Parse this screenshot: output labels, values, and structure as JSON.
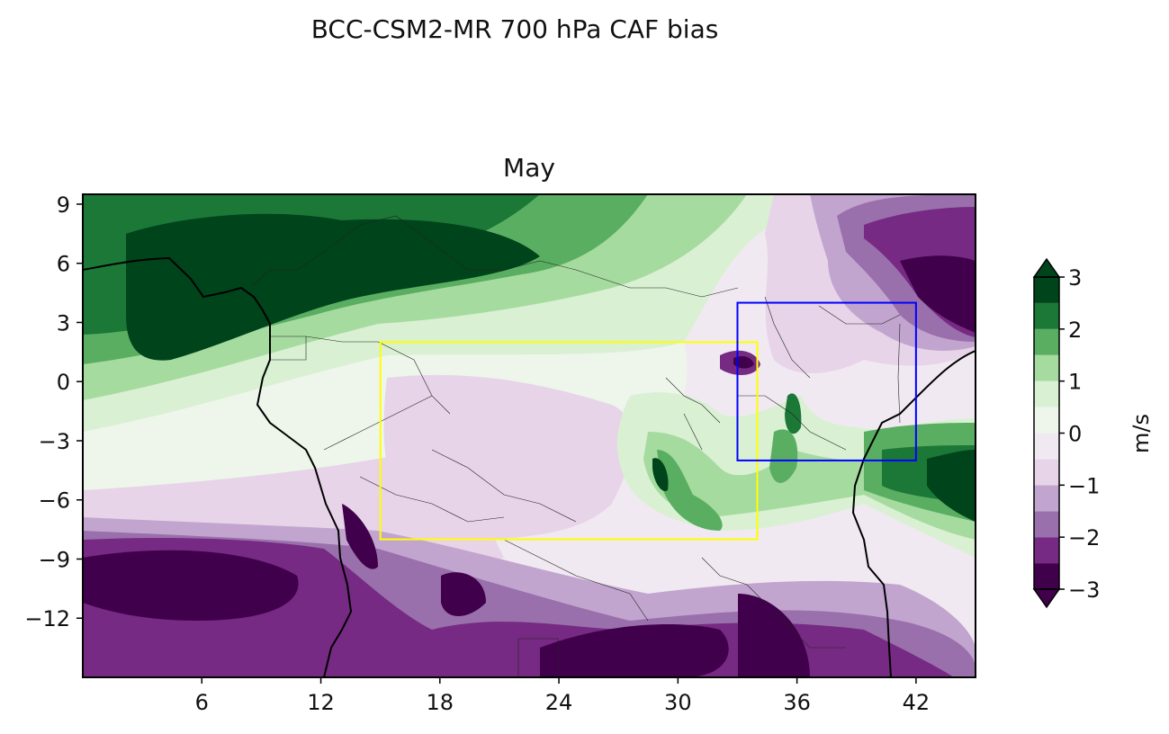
{
  "figure": {
    "suptitle": "BCC-CSM2-MR 700 hPa CAF bias",
    "panel_title": "May"
  },
  "map": {
    "lon_range": [
      0,
      45
    ],
    "lat_range": [
      -15,
      9.5
    ],
    "x_ticks": [
      "6",
      "12",
      "18",
      "24",
      "30",
      "36",
      "42"
    ],
    "y_ticks": [
      "9",
      "6",
      "3",
      "0",
      "−3",
      "−6",
      "−9",
      "−12"
    ],
    "boxes": [
      {
        "name": "yellow-box",
        "lon": [
          15,
          34
        ],
        "lat": [
          -8,
          2
        ],
        "color": "#ffff00"
      },
      {
        "name": "blue-box",
        "lon": [
          33,
          42
        ],
        "lat": [
          -4,
          4
        ],
        "color": "#0000ff"
      }
    ]
  },
  "colorbar": {
    "label": "m/s",
    "ticks": [
      "3",
      "2",
      "1",
      "0",
      "−1",
      "−2",
      "−3"
    ],
    "levels": [
      -3,
      -2.5,
      -2,
      -1.5,
      -1,
      -0.5,
      0,
      0.5,
      1,
      1.5,
      2,
      2.5,
      3
    ],
    "colors": [
      "#40004b",
      "#762a83",
      "#9970ab",
      "#c2a5cf",
      "#e7d4e8",
      "#f1e9f2",
      "#eef6ec",
      "#d9f0d3",
      "#a6dba0",
      "#5aae61",
      "#1b7837",
      "#00441b"
    ]
  }
}
